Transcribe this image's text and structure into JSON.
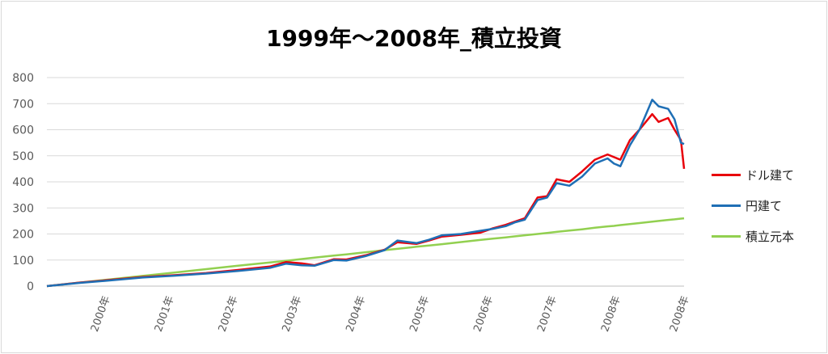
{
  "chart_data": {
    "type": "line",
    "title": "1999年～2008年_積立投資",
    "xlabel": "",
    "ylabel": "",
    "ylim": [
      0,
      800
    ],
    "yticks": [
      0,
      100,
      200,
      300,
      400,
      500,
      600,
      700,
      800
    ],
    "xticks": [
      "2000年",
      "2001年",
      "2002年",
      "2003年",
      "2004年",
      "2005年",
      "2006年",
      "2007年",
      "2008年",
      "2008年"
    ],
    "grid": true,
    "legend_position": "right",
    "x": [
      "1999.0",
      "1999.5",
      "2000.0",
      "2000.5",
      "2001.0",
      "2001.5",
      "2002.0",
      "2002.5",
      "2002.75",
      "2003.0",
      "2003.2",
      "2003.5",
      "2003.7",
      "2004.0",
      "2004.3",
      "2004.5",
      "2004.8",
      "2005.0",
      "2005.2",
      "2005.5",
      "2005.8",
      "2006.0",
      "2006.2",
      "2006.35",
      "2006.5",
      "2006.7",
      "2006.85",
      "2007.0",
      "2007.2",
      "2007.4",
      "2007.6",
      "2007.8",
      "2007.9",
      "2008.0",
      "2008.15",
      "2008.3",
      "2008.5",
      "2008.6",
      "2008.75",
      "2008.85",
      "2008.95",
      "2009.0"
    ],
    "series": [
      {
        "name": "ドル建て",
        "color": "#e8000b",
        "values": [
          0,
          13,
          24,
          35,
          42,
          50,
          62,
          75,
          92,
          87,
          80,
          103,
          102,
          118,
          140,
          168,
          162,
          175,
          190,
          197,
          205,
          222,
          235,
          248,
          260,
          340,
          345,
          410,
          400,
          440,
          485,
          505,
          495,
          485,
          560,
          600,
          660,
          630,
          645,
          600,
          560,
          450
        ]
      },
      {
        "name": "円建て",
        "color": "#1f6fb5",
        "values": [
          0,
          12,
          22,
          33,
          40,
          48,
          58,
          70,
          86,
          80,
          78,
          100,
          98,
          115,
          138,
          175,
          165,
          178,
          195,
          200,
          212,
          220,
          230,
          245,
          255,
          330,
          340,
          395,
          385,
          420,
          470,
          490,
          470,
          460,
          540,
          600,
          715,
          690,
          680,
          640,
          550,
          545
        ]
      },
      {
        "name": "積立元本",
        "color": "#92d050",
        "values": [
          0,
          13,
          26,
          39,
          52,
          65,
          78,
          91,
          97,
          104,
          109,
          117,
          122,
          130,
          138,
          143,
          151,
          156,
          161,
          169,
          177,
          182,
          187,
          191,
          195,
          200,
          204,
          208,
          213,
          218,
          224,
          229,
          231,
          234,
          238,
          242,
          247,
          250,
          254,
          256,
          259,
          260
        ]
      }
    ]
  }
}
